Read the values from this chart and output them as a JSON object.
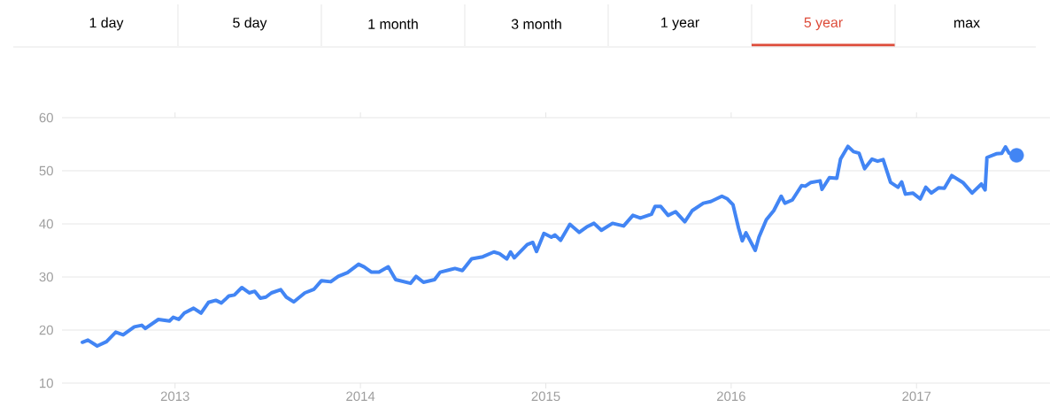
{
  "chart_data": {
    "type": "line",
    "annotations": [
      "1 day",
      "5 day",
      "1 month",
      "3 month",
      "1 year",
      "5 year",
      "max"
    ],
    "x": [
      2012.5,
      2012.53,
      2012.58,
      2012.63,
      2012.68,
      2012.72,
      2012.78,
      2012.82,
      2012.84,
      2012.91,
      2012.97,
      2012.99,
      2013.02,
      2013.05,
      2013.1,
      2013.14,
      2013.18,
      2013.22,
      2013.25,
      2013.29,
      2013.32,
      2013.36,
      2013.4,
      2013.43,
      2013.46,
      2013.49,
      2013.52,
      2013.57,
      2013.6,
      2013.64,
      2013.7,
      2013.75,
      2013.79,
      2013.84,
      2013.88,
      2013.93,
      2013.99,
      2014.02,
      2014.06,
      2014.1,
      2014.15,
      2014.19,
      2014.27,
      2014.3,
      2014.34,
      2014.4,
      2014.43,
      2014.51,
      2014.55,
      2014.6,
      2014.66,
      2014.72,
      2014.75,
      2014.79,
      2014.81,
      2014.83,
      2014.9,
      2014.93,
      2014.95,
      2014.99,
      2015.03,
      2015.05,
      2015.08,
      2015.13,
      2015.18,
      2015.22,
      2015.26,
      2015.3,
      2015.36,
      2015.42,
      2015.47,
      2015.51,
      2015.57,
      2015.59,
      2015.62,
      2015.66,
      2015.7,
      2015.75,
      2015.79,
      2015.85,
      2015.89,
      2015.95,
      2015.98,
      2016.01,
      2016.04,
      2016.06,
      2016.08,
      2016.13,
      2016.15,
      2016.19,
      2016.23,
      2016.27,
      2016.29,
      2016.33,
      2016.38,
      2016.4,
      2016.43,
      2016.48,
      2016.49,
      2016.53,
      2016.57,
      2016.59,
      2016.63,
      2016.66,
      2016.69,
      2016.72,
      2016.76,
      2016.79,
      2016.82,
      2016.86,
      2016.9,
      2016.92,
      2016.94,
      2016.98,
      2017.02,
      2017.05,
      2017.08,
      2017.12,
      2017.15,
      2017.19,
      2017.25,
      2017.3,
      2017.35,
      2017.37,
      2017.38,
      2017.43,
      2017.46,
      2017.48,
      2017.5,
      2017.54
    ],
    "series": [
      {
        "color": "#4285f4",
        "values": [
          17.7,
          18.1,
          17.0,
          17.8,
          19.6,
          19.1,
          20.6,
          20.9,
          20.3,
          22.0,
          21.7,
          22.4,
          22.0,
          23.2,
          24.1,
          23.2,
          25.2,
          25.6,
          25.1,
          26.4,
          26.6,
          28.0,
          27.0,
          27.3,
          26.0,
          26.2,
          27.0,
          27.6,
          26.2,
          25.3,
          27.0,
          27.7,
          29.3,
          29.1,
          30.1,
          30.8,
          32.4,
          31.9,
          30.9,
          30.9,
          31.9,
          29.5,
          28.8,
          30.1,
          29.0,
          29.5,
          30.9,
          31.6,
          31.2,
          33.4,
          33.8,
          34.7,
          34.4,
          33.4,
          34.7,
          33.6,
          36.1,
          36.5,
          34.8,
          38.2,
          37.5,
          37.9,
          36.9,
          39.9,
          38.4,
          39.4,
          40.1,
          38.8,
          40.1,
          39.6,
          41.6,
          41.1,
          41.8,
          43.3,
          43.3,
          41.6,
          42.3,
          40.4,
          42.5,
          43.9,
          44.2,
          45.2,
          44.7,
          43.6,
          39.2,
          36.8,
          38.3,
          35.0,
          37.5,
          40.8,
          42.5,
          45.2,
          43.9,
          44.5,
          47.2,
          47.1,
          47.8,
          48.1,
          46.5,
          48.7,
          48.6,
          52.2,
          54.6,
          53.6,
          53.3,
          50.4,
          52.2,
          51.8,
          52.1,
          47.8,
          46.9,
          47.9,
          45.6,
          45.8,
          44.7,
          46.9,
          45.8,
          46.8,
          46.7,
          49.1,
          47.8,
          45.8,
          47.5,
          46.4,
          52.5,
          53.2,
          53.3,
          54.5,
          53.3,
          52.9
        ]
      },
      {
        "type": "scatter",
        "color": "#4285f4",
        "x": [
          2017.54
        ],
        "values": [
          52.9
        ]
      }
    ],
    "xlim": [
      2012.39,
      2017.72
    ],
    "xticks": [
      2013,
      2014,
      2015,
      2016,
      2017
    ],
    "ylim": [
      10,
      60
    ],
    "yticks": [
      10,
      20,
      30,
      40,
      50,
      60
    ],
    "grid": "y"
  }
}
